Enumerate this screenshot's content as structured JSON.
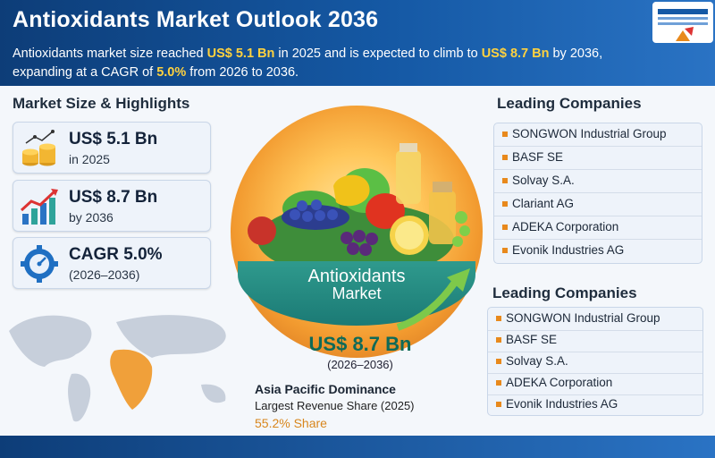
{
  "header": {
    "title": "Antioxidants Market Outlook 2036",
    "subtitle_parts": {
      "p1": "Antioxidants market size reached ",
      "v1": "US$ 5.1 Bn",
      "p2": " in 2025 and is expected to climb to ",
      "v2": "US$ 8.7 Bn",
      "p3": " by 2036, expanding at a CAGR of ",
      "v3": "5.0%",
      "p4": " from 2026 to 2036."
    }
  },
  "highlights": {
    "section_title": "Market Size & Highlights",
    "cards": [
      {
        "value": "US$ 5.1 Bn",
        "label": "in 2025",
        "icon": "coins-icon"
      },
      {
        "value": "US$ 8.7 Bn",
        "label": "by 2036",
        "icon": "growth-chart-icon"
      },
      {
        "value": "CAGR 5.0%",
        "label": "(2026–2036)",
        "icon": "gear-gauge-icon"
      }
    ]
  },
  "center": {
    "band_line1": "Antioxidants",
    "band_line2": "Market",
    "value": "US$ 8.7 Bn",
    "period": "(2026–2036)"
  },
  "asia": {
    "title": "Asia Pacific Dominance",
    "subtitle": "Largest Revenue Share (2025)",
    "share": "55.2% Share"
  },
  "companies_top": {
    "section_title": "Leading Companies",
    "items": [
      "SONGWON Industrial Group",
      "BASF SE",
      "Solvay S.A.",
      "Clariant AG",
      "ADEKA Corporation",
      "Evonik Industries AG"
    ]
  },
  "companies_bottom": {
    "section_title": "Leading Companies",
    "items": [
      "SONGWON Industrial Group",
      "BASF SE",
      "Solvay S.A.",
      "ADEKA Corporation",
      "Evonik Industries AG"
    ]
  },
  "colors": {
    "header_blue": "#1559a5",
    "highlight_yellow": "#ffd23f",
    "accent_orange": "#e8891c",
    "teal": "#1b7a75"
  }
}
